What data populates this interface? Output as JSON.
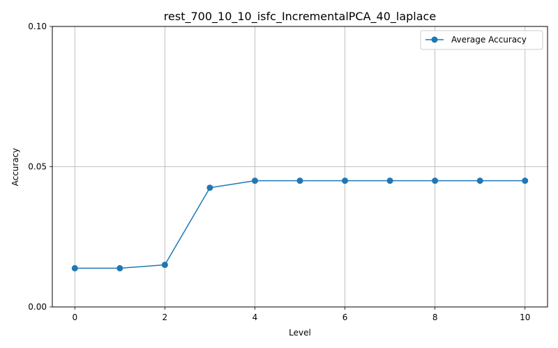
{
  "chart_data": {
    "type": "line",
    "title": "rest_700_10_10_isfc_IncrementalPCA_40_laplace",
    "xlabel": "Level",
    "ylabel": "Accuracy",
    "xlim": [
      -0.5,
      10.5
    ],
    "ylim": [
      0.0,
      0.1
    ],
    "xticks": [
      0,
      2,
      4,
      6,
      8,
      10
    ],
    "xtick_labels": [
      "0",
      "2",
      "4",
      "6",
      "8",
      "10"
    ],
    "yticks": [
      0.0,
      0.05,
      0.1
    ],
    "ytick_labels": [
      "0.00",
      "0.05",
      "0.10"
    ],
    "grid": true,
    "legend_position": "top-right",
    "series": [
      {
        "name": "Average Accuracy",
        "color": "#1f77b4",
        "marker": "circle",
        "x": [
          0,
          1,
          2,
          3,
          4,
          5,
          6,
          7,
          8,
          9,
          10
        ],
        "values": [
          0.0138,
          0.0138,
          0.015,
          0.0425,
          0.045,
          0.045,
          0.045,
          0.045,
          0.045,
          0.045,
          0.045
        ]
      }
    ]
  }
}
